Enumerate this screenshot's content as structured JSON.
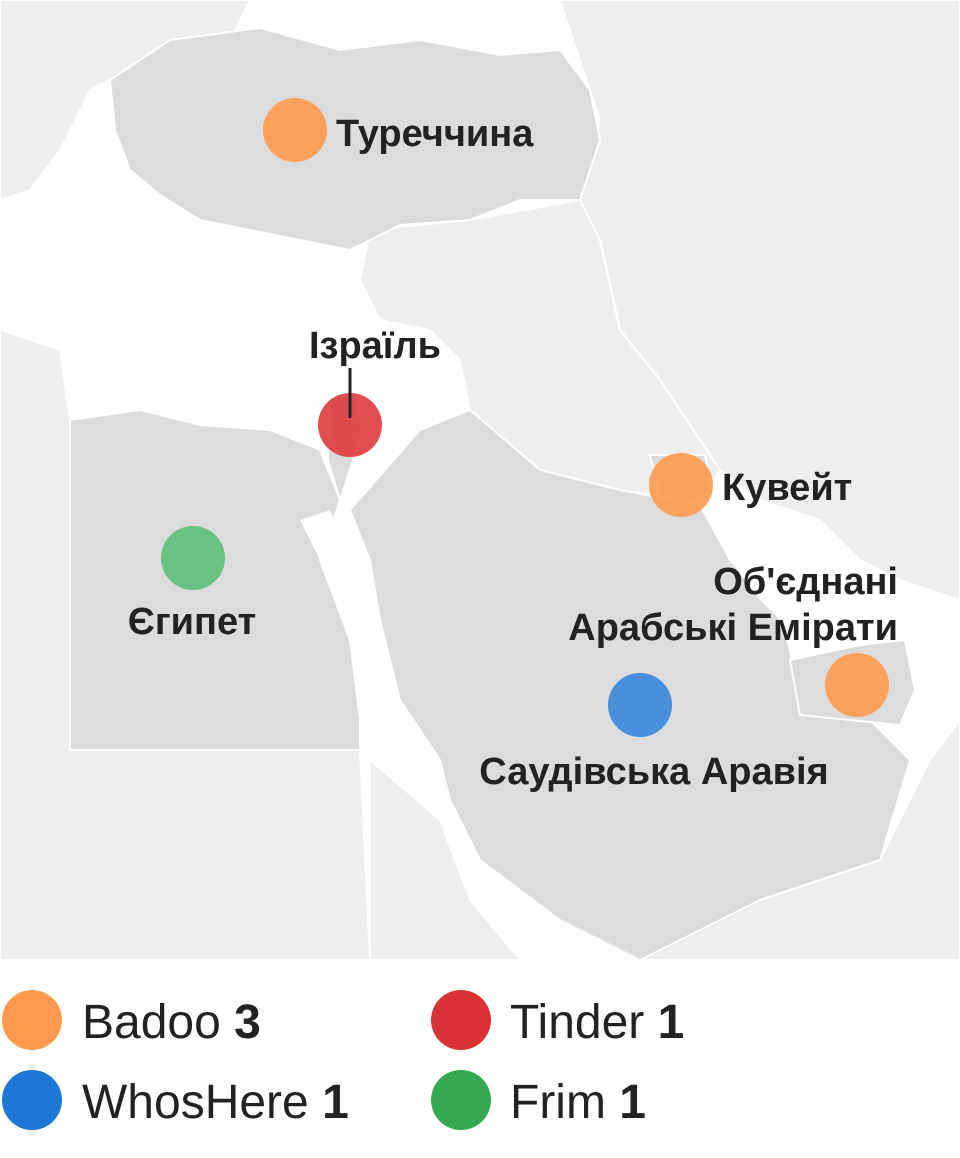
{
  "map": {
    "markers": [
      {
        "id": "turkey",
        "country": "Туреччина",
        "app": "Badoo",
        "color": "#FF9A4E"
      },
      {
        "id": "israel",
        "country": "Ізраїль",
        "app": "Tinder",
        "color": "#DD3B3E"
      },
      {
        "id": "egypt",
        "country": "Єгипет",
        "app": "Frim",
        "color": "#5CBF78"
      },
      {
        "id": "kuwait",
        "country": "Кувейт",
        "app": "Badoo",
        "color": "#FF9A4E"
      },
      {
        "id": "uae",
        "country_line1": "Об'єднані",
        "country_line2": "Арабські Емірати",
        "app": "Badoo",
        "color": "#FF9A4E"
      },
      {
        "id": "saudi",
        "country": "Саудівська Аравія",
        "app": "WhosHere",
        "color": "#3F8BDB"
      }
    ]
  },
  "legend": {
    "items": [
      {
        "name": "Badoo",
        "count": "3",
        "color": "#FF9A4E"
      },
      {
        "name": "Tinder",
        "count": "1",
        "color": "#D93235"
      },
      {
        "name": "WhosHere",
        "count": "1",
        "color": "#1F78D6"
      },
      {
        "name": "Frim",
        "count": "1",
        "color": "#34A853"
      }
    ]
  }
}
